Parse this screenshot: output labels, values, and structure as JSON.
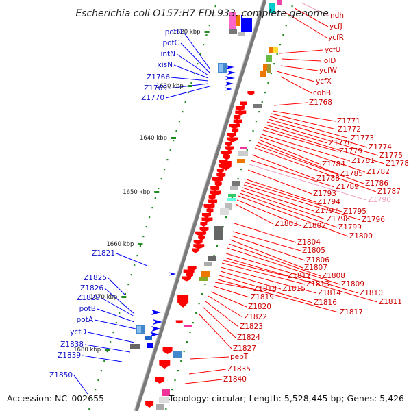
{
  "title": "Escherichia coli O157:H7 EDL933, complete genome",
  "footer": {
    "accession": "Accession: NC_002655",
    "topology": "Topology: circular; Length: 5,528,445 bp; Genes: 5,426"
  },
  "colors": {
    "backbone": "#808080",
    "left_strand": "#0000ff",
    "right_strand": "#ff0000",
    "left_label": "#1010c8",
    "right_label": "#cc0000",
    "faded_label": "#f0a0c0",
    "tick": "#228b22"
  },
  "scale": {
    "unit": "kbp",
    "ticks": [
      {
        "label": "1620 kbp"
      },
      {
        "label": "1630 kbp"
      },
      {
        "label": "1640 kbp"
      },
      {
        "label": "1650 kbp"
      },
      {
        "label": "1660 kbp"
      },
      {
        "label": "1670 kbp"
      },
      {
        "label": "1680 kbp"
      }
    ]
  },
  "left_genes": [
    "potD",
    "potC",
    "intN",
    "xisN",
    "Z1766",
    "Z1769",
    "Z1770",
    "Z1821",
    "Z1825",
    "Z1826",
    "Z1829",
    "potB",
    "potA",
    "ycfD",
    "Z1838",
    "Z1839",
    "Z1850"
  ],
  "right_genes": [
    "ndh",
    "ycfJ",
    "ycfR",
    "ycfU",
    "lolD",
    "ycfW",
    "ycfX",
    "cobB",
    "Z1768",
    "Z1771",
    "Z1772",
    "Z1773",
    "Z1774",
    "Z1775",
    "Z1776",
    "Z1778",
    "Z1779",
    "Z1781",
    "Z1782",
    "Z1784",
    "Z1785",
    "Z1786",
    "Z1787",
    "Z1788",
    "Z1789",
    "Z1790",
    "Z1793",
    "Z1794",
    "Z1795",
    "Z1796",
    "Z1797",
    "Z1798",
    "Z1799",
    "Z1800",
    "Z1802",
    "Z1803",
    "Z1804",
    "Z1805",
    "Z1806",
    "Z1807",
    "Z1808",
    "Z1809",
    "Z1810",
    "Z1811",
    "Z1812",
    "Z1813",
    "Z1814",
    "Z1815",
    "Z1816",
    "Z1817",
    "Z1818",
    "Z1819",
    "Z1820",
    "Z1822",
    "Z1823",
    "Z1824",
    "Z1827",
    "pepT",
    "Z1835",
    "Z1840"
  ]
}
